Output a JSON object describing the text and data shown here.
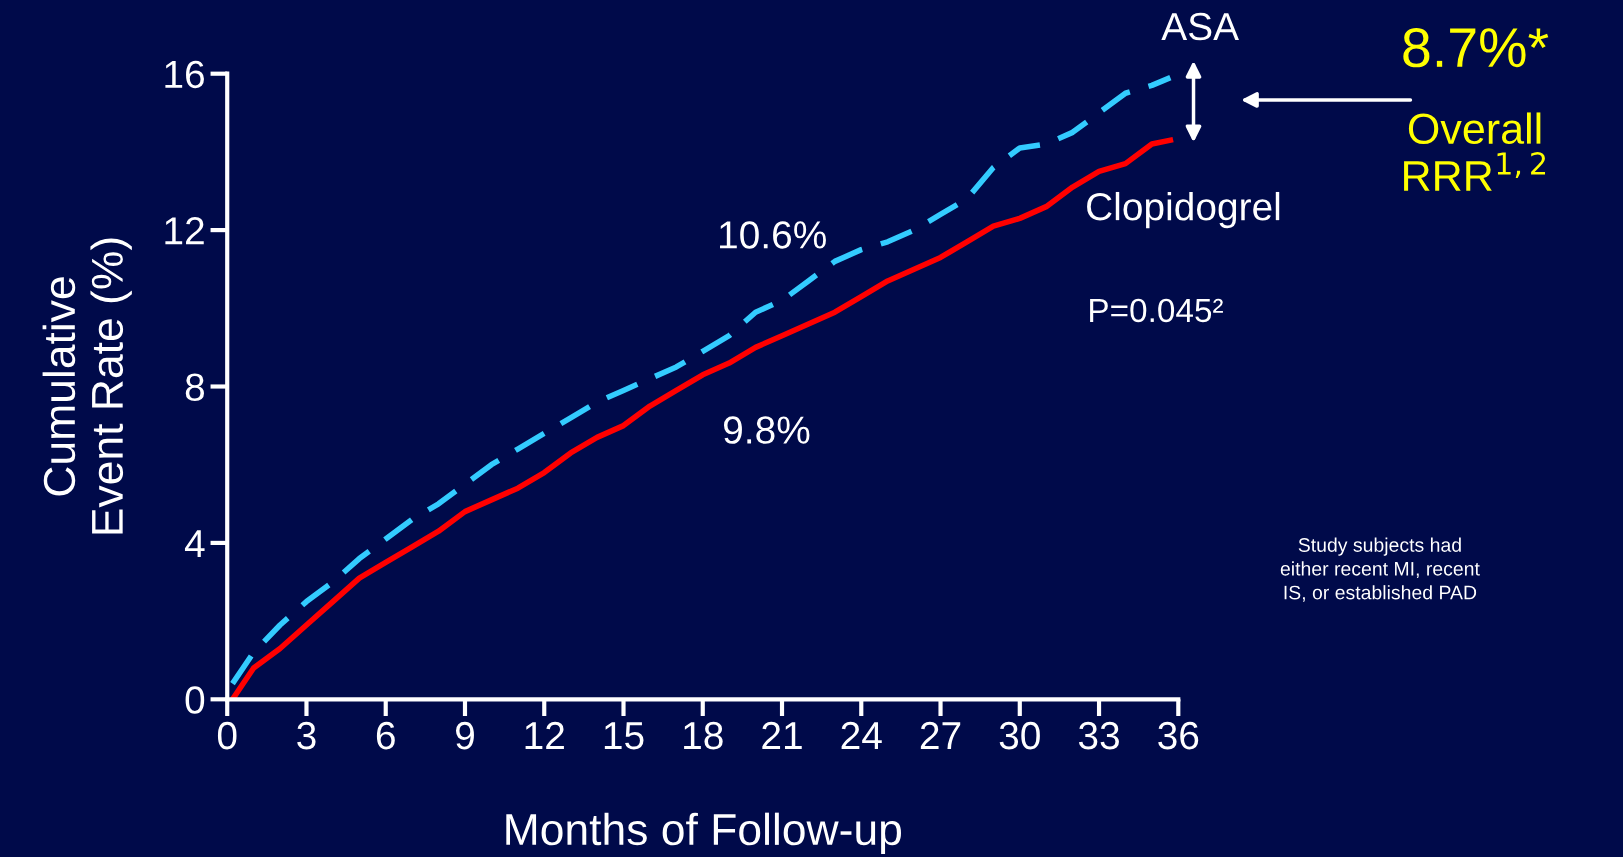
{
  "chart_data": {
    "type": "line",
    "xlabel": "Months of Follow-up",
    "ylabel": "Cumulative\nEvent Rate (%)",
    "xlim": [
      0,
      36
    ],
    "xticks": [
      0,
      3,
      6,
      9,
      12,
      15,
      18,
      21,
      24,
      27,
      30,
      33,
      36
    ],
    "ylim": [
      0,
      16
    ],
    "yticks": [
      0,
      4,
      8,
      12,
      16
    ],
    "grid": false,
    "legend": false,
    "marker": "none",
    "x": [
      0.2,
      1,
      2,
      3,
      4,
      5,
      6,
      7,
      8,
      9,
      10,
      11,
      12,
      13,
      14,
      15,
      16,
      17,
      18,
      19,
      20,
      21,
      22,
      23,
      24,
      25,
      26,
      27,
      28,
      29,
      30,
      31,
      32,
      33,
      34,
      35,
      35.7
    ],
    "series": [
      {
        "name": "ASA",
        "color": "#33ccff",
        "line_style": "dashed",
        "values": [
          0.4,
          1.2,
          1.9,
          2.5,
          3.0,
          3.6,
          4.1,
          4.6,
          5.0,
          5.5,
          6.0,
          6.4,
          6.8,
          7.2,
          7.6,
          7.9,
          8.2,
          8.5,
          8.9,
          9.3,
          9.9,
          10.2,
          10.7,
          11.2,
          11.5,
          11.7,
          12.0,
          12.4,
          12.8,
          13.6,
          14.1,
          14.2,
          14.5,
          15.0,
          15.5,
          15.7,
          15.9
        ]
      },
      {
        "name": "Clopidogrel",
        "color": "#ff0000",
        "line_style": "solid",
        "values": [
          0.0,
          0.8,
          1.3,
          1.9,
          2.5,
          3.1,
          3.5,
          3.9,
          4.3,
          4.8,
          5.1,
          5.4,
          5.8,
          6.3,
          6.7,
          7.0,
          7.5,
          7.9,
          8.3,
          8.6,
          9.0,
          9.3,
          9.6,
          9.9,
          10.3,
          10.7,
          11.0,
          11.3,
          11.7,
          12.1,
          12.3,
          12.6,
          13.1,
          13.5,
          13.7,
          14.2,
          14.3
        ]
      }
    ],
    "annotations": [
      "10.6%",
      "9.8%",
      "P=0.045²",
      "8.7%*",
      "Overall",
      "RRR$^{1,2}$",
      "Study subjects had\neither recent MI, recent\nIS, or established PAD"
    ]
  }
}
